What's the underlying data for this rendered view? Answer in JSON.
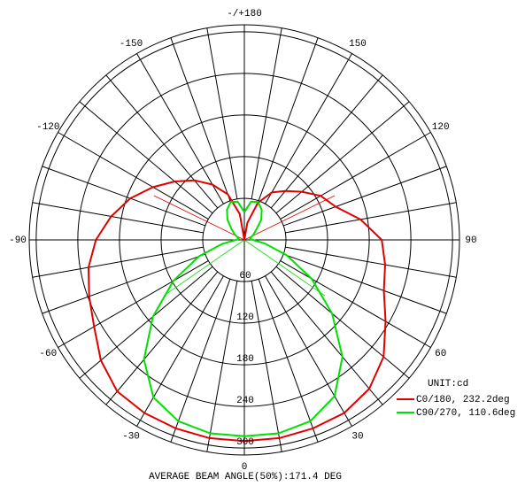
{
  "chart_data": {
    "type": "polar",
    "unit_label": "UNIT:cd",
    "footer": "AVERAGE BEAM ANGLE(50%):171.4 DEG",
    "rlim": [
      0,
      310
    ],
    "rticks": [
      60,
      120,
      180,
      240,
      300
    ],
    "thetaticks": [
      0,
      30,
      60,
      90,
      120,
      150,
      {
        "value": 180,
        "label": "-/+180"
      },
      -150,
      -120,
      -90,
      -60,
      -30
    ],
    "theta": [
      -180,
      -170,
      -160,
      -150,
      -140,
      -130,
      -120,
      -110,
      -100,
      -90,
      -80,
      -70,
      -60,
      -50,
      -40,
      -30,
      -20,
      -10,
      0,
      10,
      20,
      30,
      40,
      50,
      60,
      70,
      80,
      90,
      100,
      110,
      120,
      130,
      140,
      150,
      160,
      170,
      180
    ],
    "series": [
      {
        "name": "C0/180, 232.2deg",
        "color": "#e00000",
        "beam_angle": 232.2,
        "values": [
          0,
          38,
          70,
          92,
          112,
          131,
          152,
          175,
          195,
          214,
          228,
          238,
          250,
          270,
          285,
          288,
          289,
          290,
          290,
          290,
          289,
          288,
          280,
          262,
          235,
          214,
          206,
          198,
          170,
          140,
          127,
          108,
          92,
          79,
          57,
          25,
          0
        ]
      },
      {
        "name": "C90/270, 110.6deg",
        "color": "#00e000",
        "beam_angle": 110.6,
        "values": [
          40,
          56,
          58,
          50,
          38,
          24,
          16,
          10,
          8,
          12,
          32,
          70,
          118,
          172,
          225,
          262,
          278,
          283,
          283,
          283,
          278,
          260,
          220,
          165,
          112,
          65,
          30,
          12,
          8,
          10,
          15,
          22,
          38,
          50,
          58,
          56,
          40
        ]
      }
    ]
  }
}
